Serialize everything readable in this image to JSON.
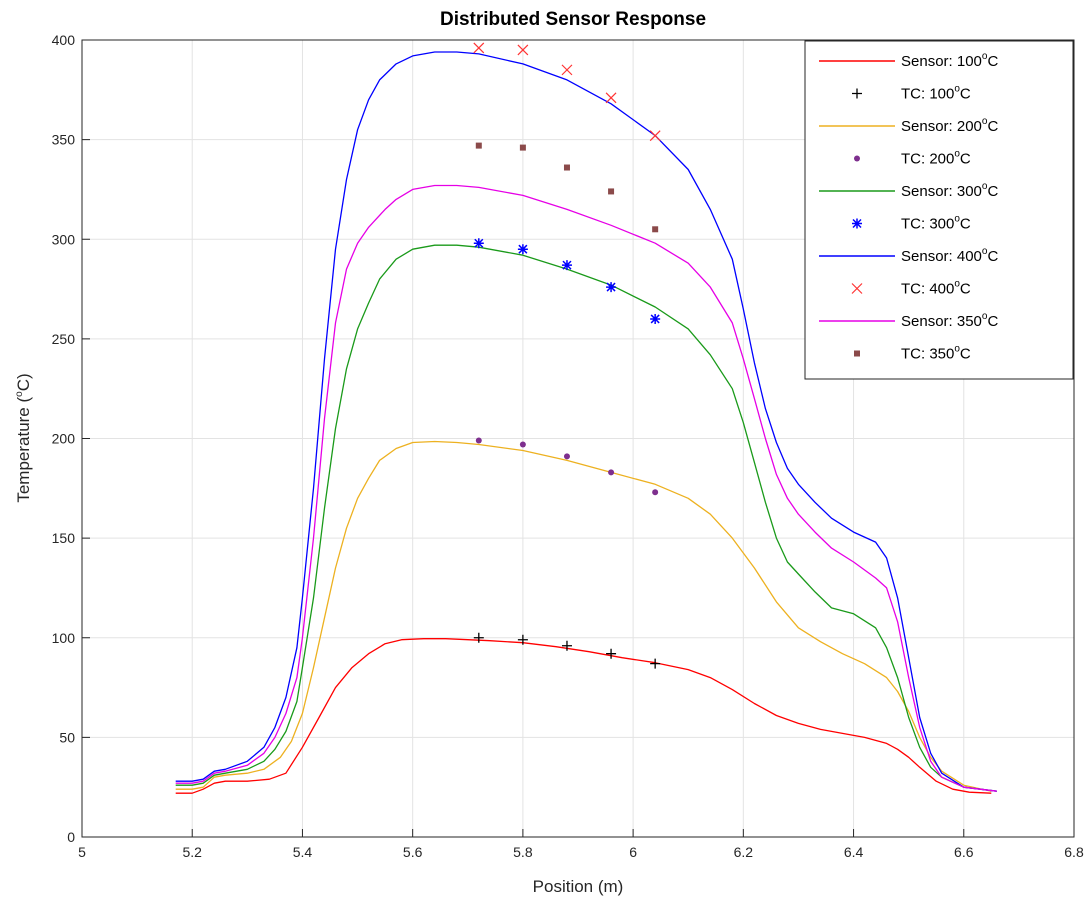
{
  "chart_data": {
    "type": "line",
    "title": "Distributed Sensor Response",
    "xlabel": "Position (m)",
    "ylabel": {
      "prefix": "Temperature (",
      "sup": "o",
      "suffix": "C)"
    },
    "xlim": [
      5,
      6.8
    ],
    "ylim": [
      0,
      400
    ],
    "xticks": [
      5,
      5.2,
      5.4,
      5.6,
      5.8,
      6,
      6.2,
      6.4,
      6.6,
      6.8
    ],
    "xtick_labels": [
      "5",
      "5.2",
      "5.4",
      "5.6",
      "5.8",
      "6",
      "6.2",
      "6.4",
      "6.6",
      "6.8"
    ],
    "yticks": [
      0,
      50,
      100,
      150,
      200,
      250,
      300,
      350,
      400
    ],
    "ytick_labels": [
      "0",
      "50",
      "100",
      "150",
      "200",
      "250",
      "300",
      "350",
      "400"
    ],
    "grid": true,
    "legend_position": "top-right",
    "series": [
      {
        "name": "Sensor: 100°C",
        "legend": {
          "prefix": "Sensor: 100",
          "sup": "o",
          "suffix": "C"
        },
        "kind": "line",
        "color": "#ff0000",
        "x": [
          5.17,
          5.2,
          5.22,
          5.24,
          5.26,
          5.3,
          5.34,
          5.37,
          5.4,
          5.43,
          5.46,
          5.49,
          5.52,
          5.55,
          5.58,
          5.62,
          5.66,
          5.7,
          5.74,
          5.8,
          5.86,
          5.92,
          5.98,
          6.04,
          6.1,
          6.14,
          6.18,
          6.22,
          6.26,
          6.3,
          6.34,
          6.38,
          6.42,
          6.46,
          6.48,
          6.5,
          6.52,
          6.55,
          6.58,
          6.61,
          6.65
        ],
        "y": [
          22,
          22,
          24,
          27,
          28,
          28,
          29,
          32,
          45,
          60,
          75,
          85,
          92,
          97,
          99,
          99.5,
          99.5,
          99,
          98.5,
          97.5,
          95.5,
          93,
          90,
          87.5,
          84,
          80,
          74,
          67,
          61,
          57,
          54,
          52,
          50,
          47,
          44,
          40,
          35,
          28,
          24,
          22.5,
          22
        ]
      },
      {
        "name": "TC: 100°C",
        "legend": {
          "prefix": "TC: 100",
          "sup": "o",
          "suffix": "C"
        },
        "kind": "marker",
        "marker": "plus",
        "color": "#000000",
        "x": [
          5.72,
          5.8,
          5.88,
          5.96,
          6.04
        ],
        "y": [
          100,
          99,
          96,
          92,
          87
        ]
      },
      {
        "name": "Sensor: 200°C",
        "legend": {
          "prefix": "Sensor: 200",
          "sup": "o",
          "suffix": "C"
        },
        "kind": "line",
        "color": "#edb120",
        "x": [
          5.17,
          5.2,
          5.22,
          5.24,
          5.26,
          5.3,
          5.33,
          5.36,
          5.38,
          5.4,
          5.42,
          5.44,
          5.46,
          5.48,
          5.5,
          5.52,
          5.54,
          5.57,
          5.6,
          5.64,
          5.68,
          5.72,
          5.8,
          5.88,
          5.96,
          6.04,
          6.1,
          6.14,
          6.18,
          6.22,
          6.26,
          6.3,
          6.34,
          6.38,
          6.42,
          6.46,
          6.48,
          6.5,
          6.52,
          6.54,
          6.56,
          6.6,
          6.65
        ],
        "y": [
          24,
          24,
          25,
          30,
          31,
          32,
          34,
          40,
          48,
          62,
          85,
          110,
          135,
          155,
          170,
          180,
          189,
          195,
          198,
          198.5,
          198,
          197,
          194,
          189,
          183,
          177,
          170,
          162,
          150,
          135,
          118,
          105,
          98,
          92,
          87,
          80,
          73,
          63,
          50,
          40,
          33,
          26,
          23
        ]
      },
      {
        "name": "TC: 200°C",
        "legend": {
          "prefix": "TC: 200",
          "sup": "o",
          "suffix": "C"
        },
        "kind": "marker",
        "marker": "dot",
        "color": "#7e2f8e",
        "x": [
          5.72,
          5.8,
          5.88,
          5.96,
          6.04
        ],
        "y": [
          199,
          197,
          191,
          183,
          173
        ]
      },
      {
        "name": "Sensor: 300°C",
        "legend": {
          "prefix": "Sensor: 300",
          "sup": "o",
          "suffix": "C"
        },
        "kind": "line",
        "color": "#1a9a1a",
        "x": [
          5.17,
          5.2,
          5.22,
          5.24,
          5.26,
          5.3,
          5.33,
          5.35,
          5.37,
          5.39,
          5.4,
          5.42,
          5.44,
          5.46,
          5.48,
          5.5,
          5.52,
          5.54,
          5.57,
          5.6,
          5.64,
          5.68,
          5.72,
          5.8,
          5.88,
          5.96,
          6.04,
          6.1,
          6.14,
          6.18,
          6.2,
          6.22,
          6.24,
          6.26,
          6.28,
          6.3,
          6.33,
          6.36,
          6.4,
          6.44,
          6.46,
          6.48,
          6.5,
          6.52,
          6.54,
          6.56,
          6.6,
          6.66
        ],
        "y": [
          26,
          26,
          27,
          31,
          32,
          34,
          38,
          44,
          53,
          68,
          85,
          120,
          165,
          205,
          235,
          255,
          268,
          280,
          290,
          295,
          297,
          297,
          296,
          292,
          285,
          277,
          266,
          255,
          242,
          225,
          208,
          188,
          168,
          150,
          138,
          132,
          123,
          115,
          112,
          105,
          95,
          80,
          60,
          45,
          35,
          30,
          25,
          23
        ]
      },
      {
        "name": "TC: 300°C",
        "legend": {
          "prefix": "TC: 300",
          "sup": "o",
          "suffix": "C"
        },
        "kind": "marker",
        "marker": "star",
        "color": "#0000ff",
        "x": [
          5.72,
          5.8,
          5.88,
          5.96,
          6.04
        ],
        "y": [
          298,
          295,
          287,
          276,
          260
        ]
      },
      {
        "name": "Sensor: 400°C",
        "legend": {
          "prefix": "Sensor: 400",
          "sup": "o",
          "suffix": "C"
        },
        "kind": "line",
        "color": "#0000ff",
        "x": [
          5.17,
          5.2,
          5.22,
          5.24,
          5.26,
          5.3,
          5.33,
          5.35,
          5.37,
          5.39,
          5.4,
          5.42,
          5.44,
          5.46,
          5.48,
          5.5,
          5.52,
          5.54,
          5.57,
          5.6,
          5.64,
          5.68,
          5.72,
          5.8,
          5.88,
          5.96,
          6.04,
          6.1,
          6.14,
          6.18,
          6.2,
          6.22,
          6.24,
          6.26,
          6.28,
          6.3,
          6.33,
          6.36,
          6.4,
          6.44,
          6.46,
          6.48,
          6.5,
          6.52,
          6.54,
          6.56,
          6.6,
          6.66
        ],
        "y": [
          28,
          28,
          29,
          33,
          34,
          38,
          45,
          55,
          70,
          95,
          120,
          175,
          240,
          295,
          330,
          355,
          370,
          380,
          388,
          392,
          394,
          394,
          393,
          388,
          380,
          368,
          352,
          335,
          315,
          290,
          265,
          238,
          215,
          198,
          185,
          177,
          168,
          160,
          153,
          148,
          140,
          120,
          90,
          60,
          42,
          32,
          25,
          23
        ]
      },
      {
        "name": "TC: 400°C",
        "legend": {
          "prefix": "TC: 400",
          "sup": "o",
          "suffix": "C"
        },
        "kind": "marker",
        "marker": "x",
        "color": "#ff3333",
        "x": [
          5.72,
          5.8,
          5.88,
          5.96,
          6.04
        ],
        "y": [
          396,
          395,
          385,
          371,
          352
        ]
      },
      {
        "name": "Sensor: 350°C",
        "legend": {
          "prefix": "Sensor: 350",
          "sup": "o",
          "suffix": "C"
        },
        "kind": "line",
        "color": "#e600e6",
        "x": [
          5.17,
          5.2,
          5.22,
          5.24,
          5.26,
          5.3,
          5.33,
          5.35,
          5.37,
          5.39,
          5.4,
          5.42,
          5.44,
          5.46,
          5.48,
          5.5,
          5.52,
          5.53,
          5.55,
          5.57,
          5.6,
          5.64,
          5.68,
          5.72,
          5.8,
          5.88,
          5.96,
          6.04,
          6.1,
          6.14,
          6.18,
          6.2,
          6.22,
          6.24,
          6.26,
          6.28,
          6.3,
          6.33,
          6.36,
          6.4,
          6.44,
          6.46,
          6.48,
          6.5,
          6.52,
          6.54,
          6.56,
          6.6,
          6.66
        ],
        "y": [
          27,
          27,
          28,
          32,
          33,
          36,
          42,
          50,
          62,
          80,
          100,
          150,
          210,
          258,
          285,
          298,
          306,
          309,
          315,
          320,
          325,
          327,
          327,
          326,
          322,
          315,
          307,
          298,
          288,
          276,
          258,
          240,
          220,
          200,
          182,
          170,
          162,
          153,
          145,
          138,
          130,
          125,
          108,
          80,
          55,
          38,
          30,
          25,
          23
        ]
      },
      {
        "name": "TC: 350°C",
        "legend": {
          "prefix": "TC: 350",
          "sup": "o",
          "suffix": "C"
        },
        "kind": "marker",
        "marker": "square",
        "color": "#8b4a4a",
        "x": [
          5.72,
          5.8,
          5.88,
          5.96,
          6.04
        ],
        "y": [
          347,
          346,
          336,
          324,
          305
        ]
      }
    ]
  }
}
